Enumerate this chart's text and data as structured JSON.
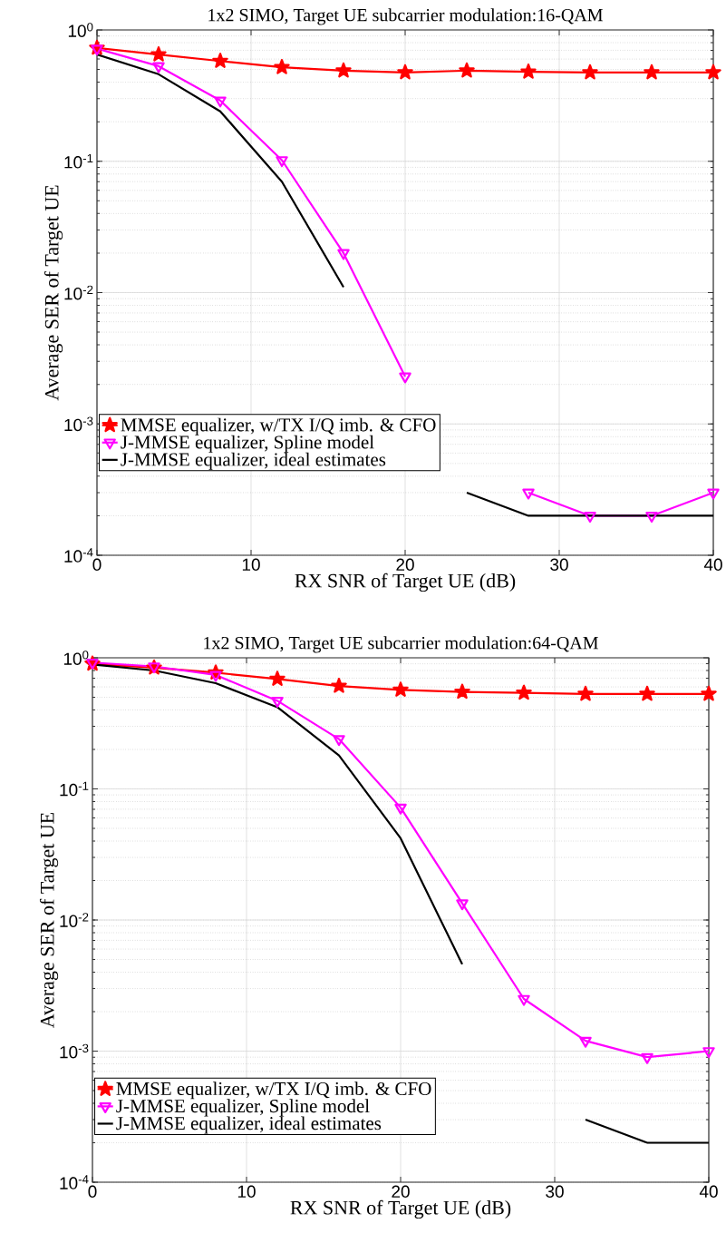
{
  "chart_data": [
    {
      "type": "line",
      "title": "1x2 SIMO, Target UE subcarrier modulation:16-QAM",
      "xlabel": "RX SNR of Target UE (dB)",
      "ylabel": "Average SER of Target UE",
      "log": "y",
      "grid": true,
      "legend": "bottom left",
      "x": [
        0,
        4,
        8,
        12,
        16,
        20,
        24,
        28,
        32,
        36,
        40
      ],
      "xlim": [
        0,
        40
      ],
      "xticks": [
        0,
        10,
        20,
        30,
        40
      ],
      "ylim": [
        0.0001,
        1
      ],
      "yticks": [
        {
          "value": 0.0001,
          "label": "10$^{-4}$"
        },
        {
          "value": 0.001,
          "label": "10$^{-3}$"
        },
        {
          "value": 0.01,
          "label": "10$^{-2}$"
        },
        {
          "value": 0.1,
          "label": "10$^{-1}$"
        },
        {
          "value": 1,
          "label": "10$^{0}$"
        }
      ],
      "series": [
        {
          "name": "MMSE equalizer, w/TX I/Q imb. & CFO",
          "color": "#ff0000",
          "marker": "star",
          "values": [
            0.73,
            0.65,
            0.58,
            0.52,
            0.49,
            0.475,
            0.49,
            0.48,
            0.475,
            0.475,
            0.475
          ]
        },
        {
          "name": "J-MMSE equalizer, Spline model",
          "color": "#ff00ff",
          "marker": "triangle",
          "values": [
            0.72,
            0.53,
            0.29,
            0.102,
            0.02,
            0.0023,
            null,
            0.0003,
            0.0002,
            0.0002,
            0.0003
          ]
        },
        {
          "name": "J-MMSE equalizer, ideal estimates",
          "color": "#000000",
          "marker": "none",
          "values": [
            0.65,
            0.46,
            0.24,
            0.07,
            0.011,
            null,
            0.0003,
            0.0002,
            0.0002,
            0.0002,
            0.0002
          ]
        }
      ]
    },
    {
      "type": "line",
      "title": "1x2 SIMO, Target UE subcarrier modulation:64-QAM",
      "xlabel": "RX SNR of Target UE (dB)",
      "ylabel": "Average SER of Target UE",
      "log": "y",
      "grid": true,
      "legend": "bottom left",
      "x": [
        0,
        4,
        8,
        12,
        16,
        20,
        24,
        28,
        32,
        36,
        40
      ],
      "xlim": [
        0,
        40
      ],
      "xticks": [
        0,
        10,
        20,
        30,
        40
      ],
      "ylim": [
        0.0001,
        1
      ],
      "yticks": [
        {
          "value": 0.0001,
          "label": "10$^{-4}$"
        },
        {
          "value": 0.001,
          "label": "10$^{-3}$"
        },
        {
          "value": 0.01,
          "label": "10$^{-2}$"
        },
        {
          "value": 0.1,
          "label": "10$^{-1}$"
        },
        {
          "value": 1,
          "label": "10$^{0}$"
        }
      ],
      "series": [
        {
          "name": "MMSE equalizer, w/TX I/Q imb. & CFO",
          "color": "#ff0000",
          "marker": "star",
          "values": [
            0.9,
            0.84,
            0.77,
            0.69,
            0.61,
            0.57,
            0.55,
            0.54,
            0.53,
            0.53,
            0.53
          ]
        },
        {
          "name": "J-MMSE equalizer, Spline model",
          "color": "#ff00ff",
          "marker": "triangle",
          "values": [
            0.92,
            0.86,
            0.74,
            0.47,
            0.24,
            0.072,
            0.0134,
            0.0025,
            0.0012,
            0.0009,
            0.001
          ]
        },
        {
          "name": "J-MMSE equalizer, ideal estimates",
          "color": "#000000",
          "marker": "none",
          "values": [
            0.89,
            0.8,
            0.64,
            0.42,
            0.18,
            0.042,
            0.0046,
            null,
            0.0003,
            0.0002,
            0.0002
          ]
        }
      ]
    }
  ]
}
